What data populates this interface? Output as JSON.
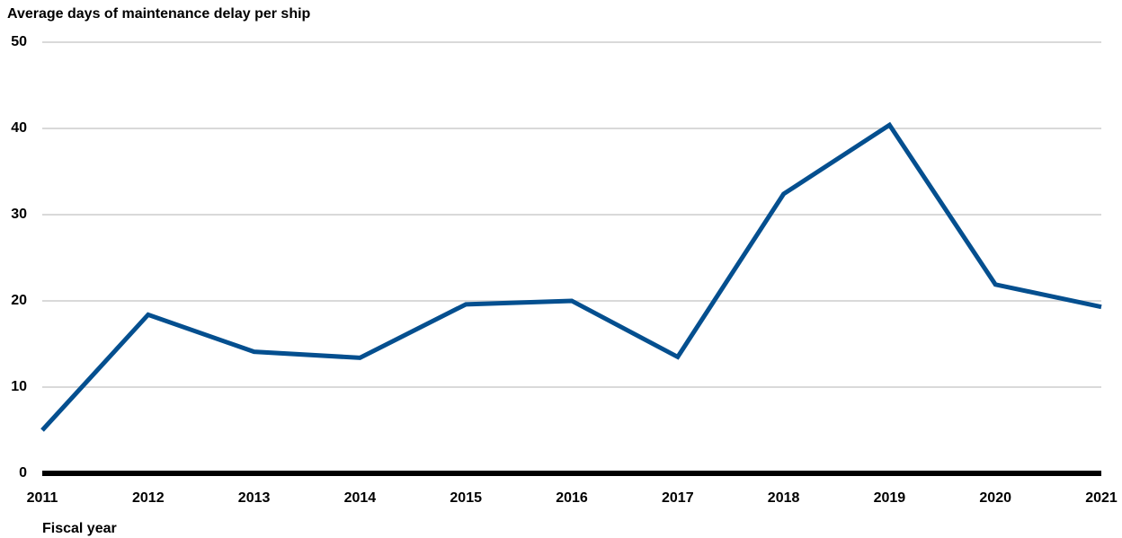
{
  "chart_data": {
    "type": "line",
    "title": "Average days of maintenance delay per ship",
    "x_label": "Fiscal year",
    "categories": [
      "2011",
      "2012",
      "2013",
      "2014",
      "2015",
      "2016",
      "2017",
      "2018",
      "2019",
      "2020",
      "2021"
    ],
    "series": [
      {
        "name": "Average days of maintenance delay per ship",
        "color": "#044f8f",
        "values": [
          5,
          18.4,
          14.1,
          13.4,
          19.6,
          20,
          13.5,
          32.4,
          40.4,
          21.9,
          19.3
        ]
      }
    ],
    "ylim": [
      0,
      50
    ],
    "yticks": [
      0,
      10,
      20,
      30,
      40,
      50
    ],
    "grid": true
  }
}
